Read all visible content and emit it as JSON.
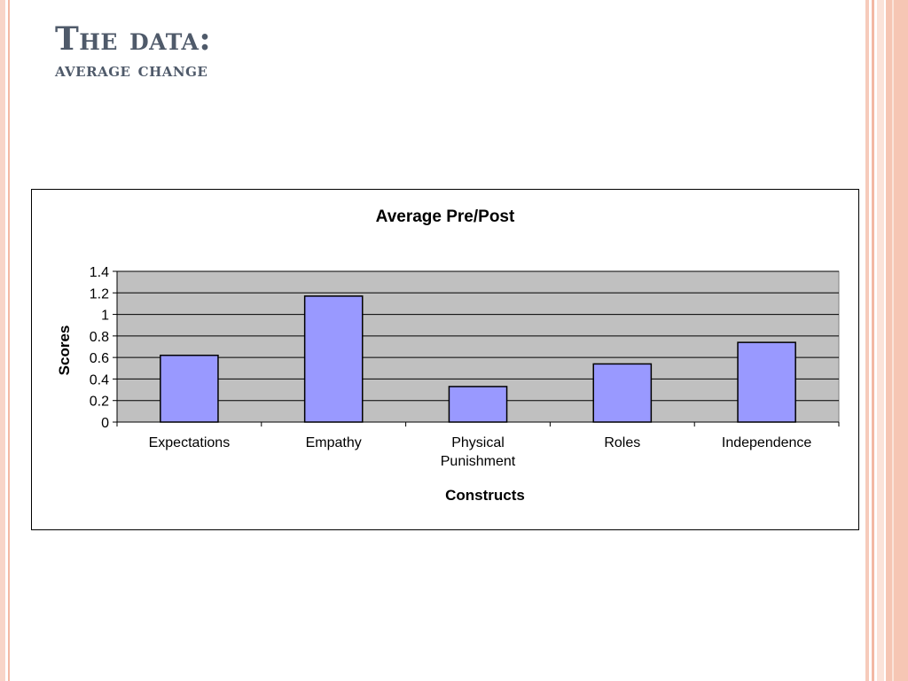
{
  "slide": {
    "title_line1": "The data:",
    "title_line2": "average change"
  },
  "chart_data": {
    "type": "bar",
    "title": "Average Pre/Post",
    "xlabel": "Constructs",
    "ylabel": "Scores",
    "categories": [
      "Expectations",
      "Empathy",
      "Physical Punishment",
      "Roles",
      "Independence"
    ],
    "category_lines": [
      [
        "Expectations"
      ],
      [
        "Empathy"
      ],
      [
        "Physical",
        "Punishment"
      ],
      [
        "Roles"
      ],
      [
        "Independence"
      ]
    ],
    "values": [
      0.62,
      1.17,
      0.33,
      0.54,
      0.74
    ],
    "ylim": [
      0,
      1.4
    ],
    "yticks": [
      "0",
      "0.2",
      "0.4",
      "0.6",
      "0.8",
      "1",
      "1.2",
      "1.4"
    ],
    "ytick_values": [
      0,
      0.2,
      0.4,
      0.6,
      0.8,
      1.0,
      1.2,
      1.4
    ],
    "grid": true,
    "bar_color": "#9999ff",
    "plot_background": "#c0c0c0"
  }
}
